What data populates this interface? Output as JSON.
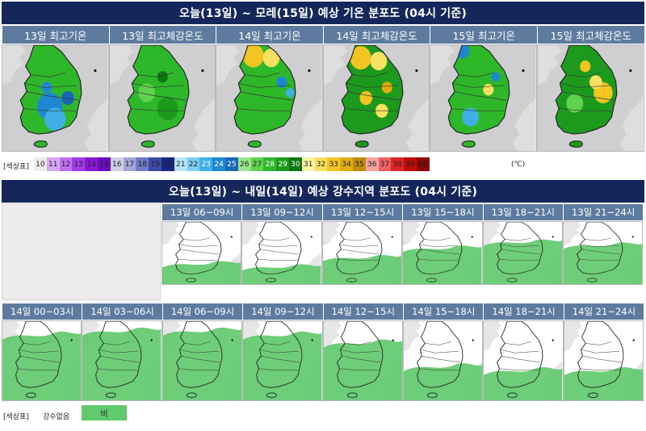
{
  "temp": {
    "title": "오늘(13일) ~ 모레(15일) 예상 기온 분포도 (04시 기준)",
    "panels": [
      {
        "label": "13일 최고기온",
        "fill": "mixed-blue"
      },
      {
        "label": "13일 최고체감온도",
        "fill": "green"
      },
      {
        "label": "14일 최고기온",
        "fill": "yellow-north"
      },
      {
        "label": "14일 최고체감온도",
        "fill": "yellow-spread"
      },
      {
        "label": "15일 최고기온",
        "fill": "blue-south"
      },
      {
        "label": "15일 최고체감온도",
        "fill": "yellow-east"
      }
    ],
    "legend": {
      "label": "[색상표]",
      "unit": "(℃)",
      "steps": [
        {
          "v": "10",
          "c": "#ececec"
        },
        {
          "v": "11",
          "c": "#d6a6f4"
        },
        {
          "v": "12",
          "c": "#bf6ff0"
        },
        {
          "v": "13",
          "c": "#a33be6"
        },
        {
          "v": "14",
          "c": "#8718d6"
        },
        {
          "v": "15",
          "c": "#6c0cc0"
        },
        {
          "v": "16",
          "c": "#cfcfe8"
        },
        {
          "v": "17",
          "c": "#a2a6d8"
        },
        {
          "v": "18",
          "c": "#6f79c4"
        },
        {
          "v": "19",
          "c": "#3c4aa6"
        },
        {
          "v": "20",
          "c": "#1c2582"
        },
        {
          "v": "21",
          "c": "#b5e3f8"
        },
        {
          "v": "22",
          "c": "#7ccdf1"
        },
        {
          "v": "23",
          "c": "#3fb0e6"
        },
        {
          "v": "24",
          "c": "#1d88d1"
        },
        {
          "v": "25",
          "c": "#1868b8"
        },
        {
          "v": "26",
          "c": "#9be58a"
        },
        {
          "v": "27",
          "c": "#5fd24f"
        },
        {
          "v": "28",
          "c": "#2fb72a"
        },
        {
          "v": "29",
          "c": "#1d9a1e"
        },
        {
          "v": "30",
          "c": "#0e7611"
        },
        {
          "v": "31",
          "c": "#fbf3a2"
        },
        {
          "v": "32",
          "c": "#f8e060"
        },
        {
          "v": "33",
          "c": "#f2c523"
        },
        {
          "v": "34",
          "c": "#e1ac0f"
        },
        {
          "v": "35",
          "c": "#c28d0a"
        },
        {
          "v": "36",
          "c": "#f6a3a3"
        },
        {
          "v": "37",
          "c": "#ef6161"
        },
        {
          "v": "38",
          "c": "#e22424"
        },
        {
          "v": "39",
          "c": "#bf0c0c"
        },
        {
          "v": "40",
          "c": "#8f0404"
        }
      ]
    }
  },
  "rain": {
    "title": "오늘(13일) ~ 내일(14일) 예상 강수지역 분포도 (04시 기준)",
    "row1": [
      {
        "label": "13일 06~09시",
        "cover": 0.35
      },
      {
        "label": "13일 09~12시",
        "cover": 0.3
      },
      {
        "label": "13일 12~15시",
        "cover": 0.45
      },
      {
        "label": "13일 15~18시",
        "cover": 0.6
      },
      {
        "label": "13일 18~21시",
        "cover": 0.7
      },
      {
        "label": "13일 21~24시",
        "cover": 0.65
      }
    ],
    "row2": [
      {
        "label": "14일 00~03시",
        "cover": 0.85
      },
      {
        "label": "14일 03~06시",
        "cover": 0.9
      },
      {
        "label": "14일 06~09시",
        "cover": 0.9
      },
      {
        "label": "14일 09~12시",
        "cover": 0.85
      },
      {
        "label": "14일 12~15시",
        "cover": 0.75
      },
      {
        "label": "14일 15~18시",
        "cover": 0.45
      },
      {
        "label": "14일 18~21시",
        "cover": 0.4
      },
      {
        "label": "14일 21~24시",
        "cover": 0.4
      }
    ],
    "legend": {
      "label": "[색상표]",
      "none": "강수없음",
      "rain": "비",
      "rain_color": "#62c96d"
    }
  }
}
